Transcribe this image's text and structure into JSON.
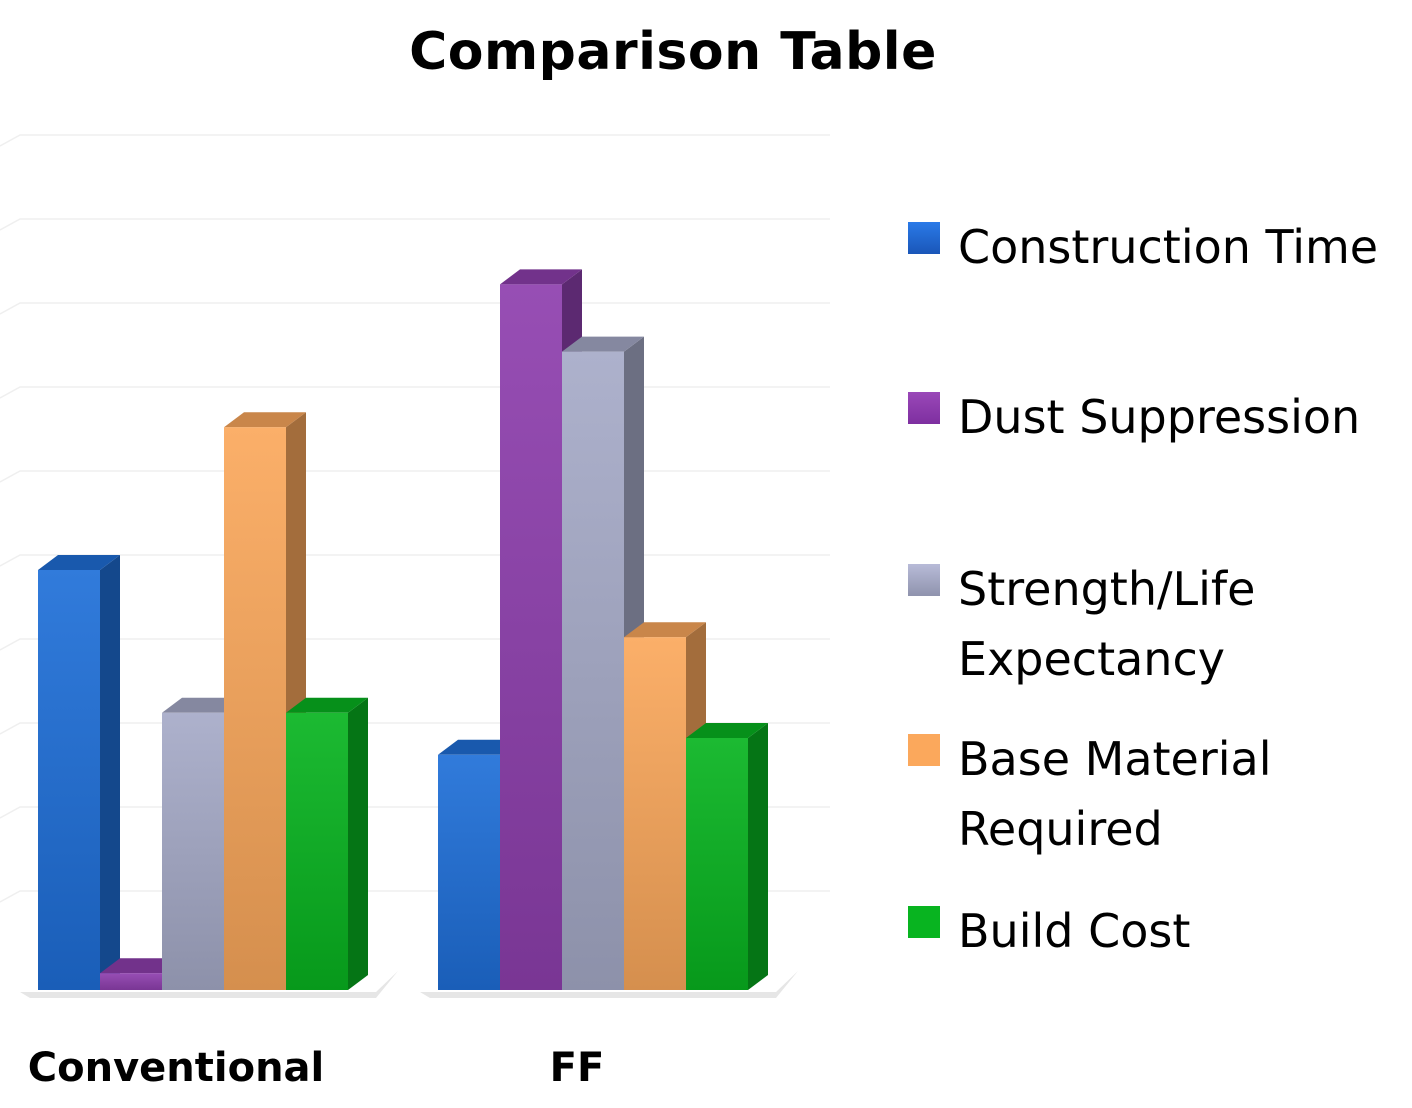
{
  "chart_data": {
    "type": "bar",
    "title": "Comparison Table",
    "categories": [
      "Conventional",
      "FF"
    ],
    "series": [
      {
        "name": "Construction Time",
        "values": [
          50,
          28
        ],
        "color": "#1f6fd8"
      },
      {
        "name": "Dust Suppression",
        "values": [
          2,
          84
        ],
        "color": "#8e3fae"
      },
      {
        "name": "Strength/Life Expectancy",
        "values": [
          33,
          76
        ],
        "color": "#a6aac8"
      },
      {
        "name": "Base Material Required",
        "values": [
          67,
          42
        ],
        "color": "#fba85c"
      },
      {
        "name": "Build Cost",
        "values": [
          33,
          30
        ],
        "color": "#08b420"
      }
    ],
    "xlabel": "",
    "ylabel": "",
    "ylim": [
      0,
      100
    ],
    "grid": true,
    "legend": "right",
    "style": "3d"
  }
}
